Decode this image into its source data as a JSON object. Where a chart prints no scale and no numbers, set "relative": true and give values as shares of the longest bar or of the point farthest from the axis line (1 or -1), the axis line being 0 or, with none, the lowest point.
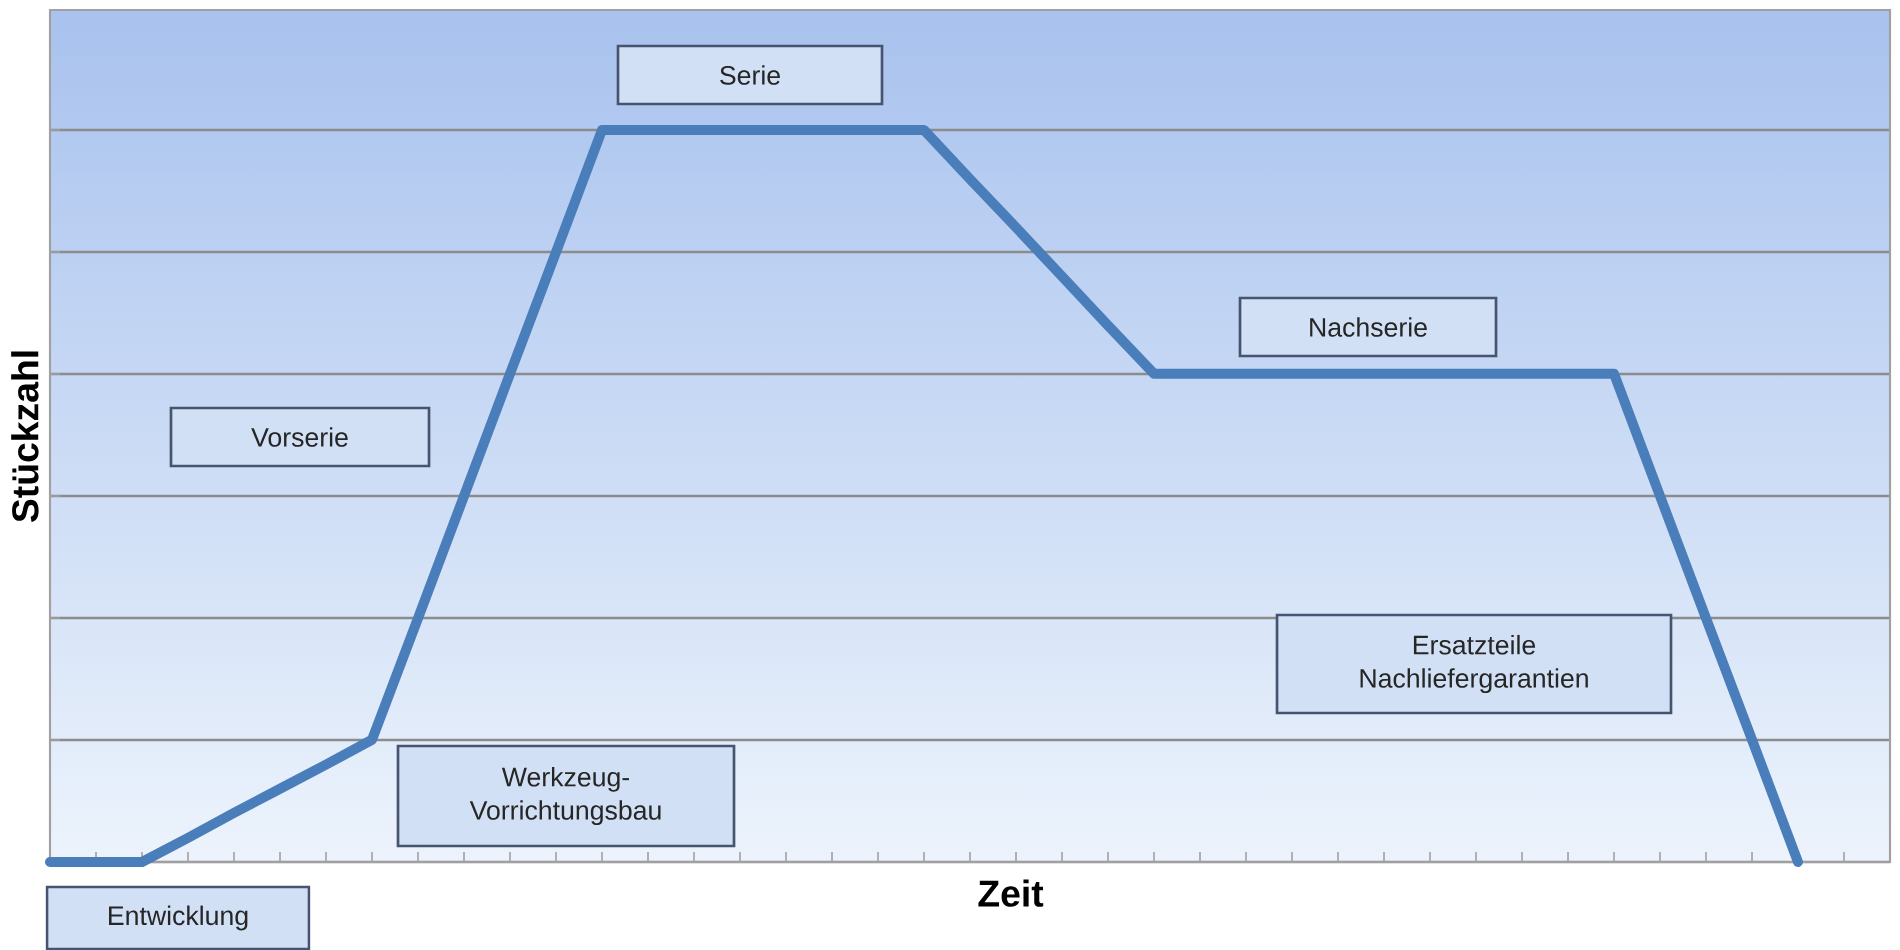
{
  "chart_data": {
    "type": "line",
    "relative": true,
    "xlabel": "Zeit",
    "ylabel": "Stückzahl",
    "categories": [
      null,
      null,
      null,
      null,
      null,
      null,
      null,
      null,
      null,
      null,
      null,
      null,
      null,
      null,
      null,
      null,
      null,
      null,
      null,
      null,
      null,
      null,
      null,
      null,
      null,
      null,
      null,
      null,
      null,
      null,
      null,
      null,
      null,
      null,
      null,
      null,
      null,
      null,
      null,
      null,
      null
    ],
    "values": [
      0,
      0,
      0,
      0.033,
      0.067,
      0.1,
      0.133,
      0.167,
      0.333,
      0.5,
      0.667,
      0.833,
      1,
      1,
      1,
      1,
      1,
      1,
      1,
      1,
      0.933,
      0.867,
      0.8,
      0.733,
      0.667,
      0.667,
      0.667,
      0.667,
      0.667,
      0.667,
      0.667,
      0.667,
      0.667,
      0.667,
      0.667,
      0.5,
      0.333,
      0.167,
      0,
      null,
      null
    ],
    "color": "#4a7ebb",
    "line_style": "solid",
    "grid": "y",
    "annotations": [
      "Entwicklung",
      "Werkzeug-\nVorrichtungsbau",
      "Vorserie",
      "Serie",
      "Nachserie",
      "Ersatzteile\nNachliefergarantien"
    ]
  }
}
